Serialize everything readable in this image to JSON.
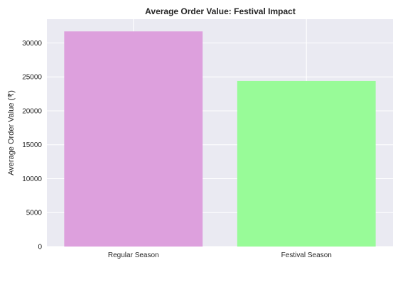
{
  "chart_data": {
    "type": "bar",
    "title": "Average Order Value: Festival Impact",
    "xlabel": "",
    "ylabel": "Average Order Value (₹)",
    "categories": [
      "Regular Season",
      "Festival Season"
    ],
    "values": [
      31700,
      24400
    ],
    "bar_colors": [
      "#dda0dd",
      "#98fb98"
    ],
    "ylim": [
      0,
      33500
    ],
    "yticks": [
      0,
      5000,
      10000,
      15000,
      20000,
      25000,
      30000
    ],
    "ytick_labels": [
      "0",
      "5000",
      "10000",
      "15000",
      "20000",
      "25000",
      "30000"
    ],
    "grid": true,
    "style": {
      "plot_background": "#eaeaf2",
      "grid_color": "#ffffff"
    }
  }
}
